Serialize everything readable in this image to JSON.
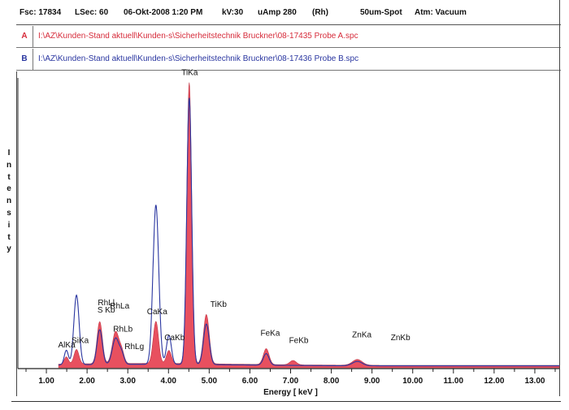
{
  "header": {
    "fsc": "Fsc: 17834",
    "lsec": "LSec: 60",
    "datetime": "06-Okt-2008  1:20 PM",
    "kv": "kV:30",
    "uamp": "uAmp 280",
    "target": "(Rh)",
    "spot": "50um-Spot",
    "atm": "Atm: Vacuum"
  },
  "spectra": [
    {
      "tag": "A",
      "path": "I:\\AZ\\Kunden-Stand aktuell\\Kunden-s\\Sicherheitstechnik Bruckner\\08-17435 Probe A.spc",
      "color": "#d62b3a"
    },
    {
      "tag": "B",
      "path": "I:\\AZ\\Kunden-Stand aktuell\\Kunden-s\\Sicherheitstechnik Bruckner\\08-17436 Probe B.spc",
      "color": "#2a36a0"
    }
  ],
  "axis": {
    "ylabel_letters": [
      "I",
      "n",
      "t",
      "e",
      "n",
      "s",
      "i",
      "t",
      "y"
    ]
  },
  "chart_data": {
    "type": "area",
    "xlabel": "Energy [ keV ]",
    "ylabel": "Intensity",
    "xlim": [
      0.3,
      13.6
    ],
    "ylim": [
      0,
      100
    ],
    "x_ticks": [
      {
        "value": 1,
        "label": "1.00"
      },
      {
        "value": 2,
        "label": "2.00"
      },
      {
        "value": 3,
        "label": "3.00"
      },
      {
        "value": 4,
        "label": "4.00"
      },
      {
        "value": 5,
        "label": "5.00"
      },
      {
        "value": 6,
        "label": "6.00"
      },
      {
        "value": 7,
        "label": "7.00"
      },
      {
        "value": 8,
        "label": "8.00"
      },
      {
        "value": 9,
        "label": "9.00"
      },
      {
        "value": 10,
        "label": "10.00"
      },
      {
        "value": 11,
        "label": "11.00"
      },
      {
        "value": 12,
        "label": "12.00"
      },
      {
        "value": 13,
        "label": "13.00"
      }
    ],
    "series": [
      {
        "name": "A",
        "style": "filled",
        "color": "#e8505f",
        "baseline": 1.5,
        "peaks": [
          {
            "x": 1.49,
            "h": 2.5,
            "w": 0.05
          },
          {
            "x": 1.74,
            "h": 5,
            "w": 0.06
          },
          {
            "x": 2.31,
            "h": 14.5,
            "w": 0.065
          },
          {
            "x": 2.7,
            "h": 11,
            "w": 0.08
          },
          {
            "x": 2.85,
            "h": 4,
            "w": 0.06
          },
          {
            "x": 3.69,
            "h": 14.5,
            "w": 0.065
          },
          {
            "x": 4.01,
            "h": 4.5,
            "w": 0.06
          },
          {
            "x": 4.51,
            "h": 97,
            "w": 0.06
          },
          {
            "x": 4.93,
            "h": 17,
            "w": 0.07
          },
          {
            "x": 6.4,
            "h": 5.5,
            "w": 0.07
          },
          {
            "x": 7.06,
            "h": 1.5,
            "w": 0.08
          },
          {
            "x": 8.64,
            "h": 2,
            "w": 0.12
          }
        ]
      },
      {
        "name": "B",
        "style": "line",
        "color": "#2a36a0",
        "baseline": 1.2,
        "peaks": [
          {
            "x": 1.49,
            "h": 5,
            "w": 0.05
          },
          {
            "x": 1.74,
            "h": 24,
            "w": 0.065
          },
          {
            "x": 2.31,
            "h": 12,
            "w": 0.065
          },
          {
            "x": 2.7,
            "h": 9,
            "w": 0.08
          },
          {
            "x": 2.85,
            "h": 3.5,
            "w": 0.06
          },
          {
            "x": 3.69,
            "h": 55,
            "w": 0.07
          },
          {
            "x": 4.01,
            "h": 10,
            "w": 0.06
          },
          {
            "x": 4.51,
            "h": 92,
            "w": 0.06
          },
          {
            "x": 4.93,
            "h": 14,
            "w": 0.07
          },
          {
            "x": 6.4,
            "h": 4,
            "w": 0.07
          },
          {
            "x": 8.64,
            "h": 1.5,
            "w": 0.12
          }
        ]
      }
    ],
    "peak_labels": [
      {
        "text": "AlKa",
        "x": 1.5,
        "y": 7
      },
      {
        "text": "SiKa",
        "x": 1.83,
        "y": 8.5
      },
      {
        "text": "RhLl",
        "x": 2.47,
        "y": 21.5
      },
      {
        "text": "S Kb",
        "x": 2.47,
        "y": 19
      },
      {
        "text": "RhLa",
        "x": 2.8,
        "y": 20.5
      },
      {
        "text": "RhLb",
        "x": 2.88,
        "y": 12.5
      },
      {
        "text": "RhLg",
        "x": 3.16,
        "y": 6.5
      },
      {
        "text": "CaKa",
        "x": 3.72,
        "y": 18.5
      },
      {
        "text": "CaKb",
        "x": 4.15,
        "y": 9.5
      },
      {
        "text": "TiKa",
        "x": 4.52,
        "y": 101
      },
      {
        "text": "TiKb",
        "x": 5.23,
        "y": 21
      },
      {
        "text": "FeKa",
        "x": 6.5,
        "y": 11
      },
      {
        "text": "FeKb",
        "x": 7.2,
        "y": 8.5
      },
      {
        "text": "ZnKa",
        "x": 8.75,
        "y": 10.5
      },
      {
        "text": "ZnKb",
        "x": 9.7,
        "y": 9.5
      }
    ]
  }
}
